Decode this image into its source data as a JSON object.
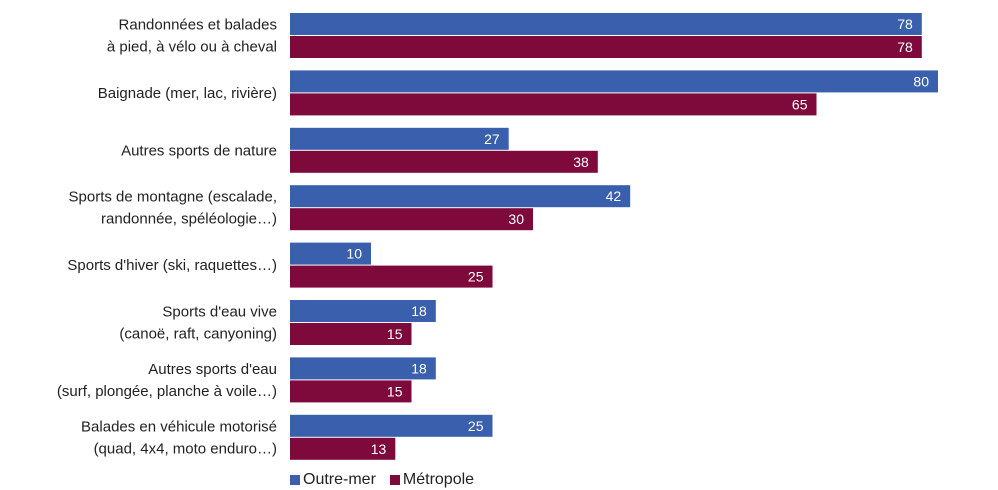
{
  "chart_data": {
    "type": "bar",
    "orientation": "horizontal",
    "categories": [
      [
        "Randonnées et balades",
        "à pied, à vélo ou à cheval"
      ],
      [
        "Baignade (mer, lac, rivière)"
      ],
      [
        "Autres sports de nature"
      ],
      [
        "Sports de montagne (escalade,",
        "randonnée, spéléologie…)"
      ],
      [
        "Sports d'hiver (ski, raquettes…)"
      ],
      [
        "Sports d'eau vive",
        "(canoë, raft, canyoning)"
      ],
      [
        "Autres sports d'eau",
        "(surf, plongée, planche à voile…)"
      ],
      [
        "Balades en véhicule motorisé",
        "(quad, 4x4, moto enduro…)"
      ]
    ],
    "series": [
      {
        "name": "Outre-mer",
        "color": "#3a5fad",
        "values": [
          78,
          80,
          27,
          42,
          10,
          18,
          18,
          25
        ]
      },
      {
        "name": "Métropole",
        "color": "#7e0a3c",
        "values": [
          78,
          65,
          38,
          30,
          25,
          15,
          15,
          13
        ]
      }
    ],
    "xlim": [
      0,
      80
    ],
    "data_labels": true,
    "legend_position": "bottom-left",
    "grid": false
  }
}
